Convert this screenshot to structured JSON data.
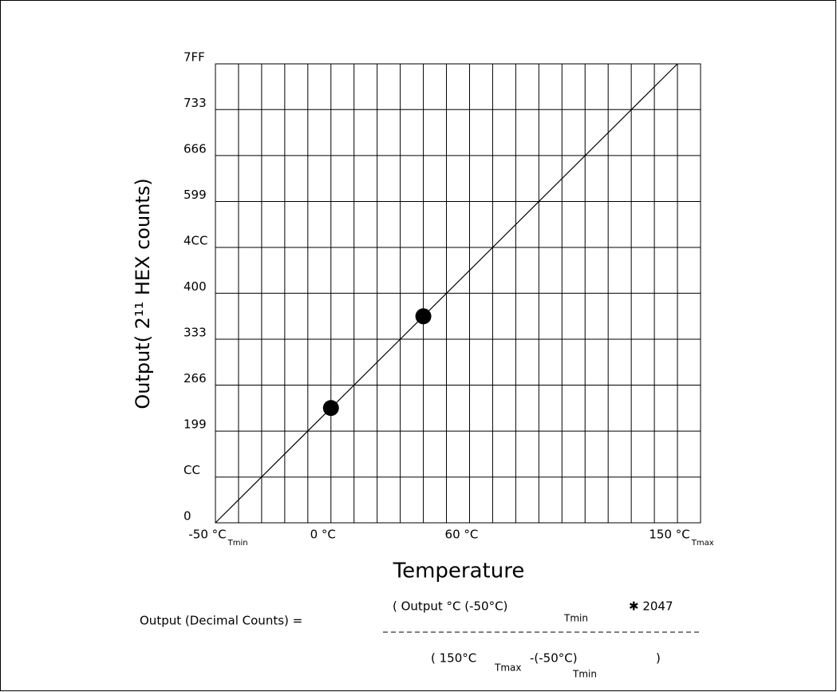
{
  "chart_data": {
    "type": "line",
    "xlabel": "Temperature",
    "ylabel": "Output( 2¹¹ HEX counts)",
    "xlim": [
      -50,
      160
    ],
    "ylim": [
      0,
      2047
    ],
    "xticks": [
      {
        "value": -50,
        "label": "-50 °C",
        "sub": "Tmin"
      },
      {
        "value": 0,
        "label": "0 °C"
      },
      {
        "value": 60,
        "label": "60 °C"
      },
      {
        "value": 150,
        "label": "150 °C",
        "sub": "Tmax"
      }
    ],
    "xgrid": [
      -50,
      -40,
      -30,
      -20,
      -10,
      0,
      10,
      20,
      30,
      40,
      50,
      60,
      70,
      80,
      90,
      100,
      110,
      120,
      130,
      140,
      150,
      160
    ],
    "yticks": [
      0,
      {
        "value": 204,
        "label": "CC"
      },
      {
        "value": 409,
        "label": "199"
      },
      {
        "value": 614,
        "label": "266"
      },
      {
        "value": 819,
        "label": "333"
      },
      {
        "value": 1024,
        "label": "400"
      },
      {
        "value": 1228,
        "label": "4CC"
      },
      {
        "value": 1433,
        "label": "599"
      },
      {
        "value": 1638,
        "label": "666"
      },
      {
        "value": 1843,
        "label": "733"
      },
      {
        "value": 2047,
        "label": "7FF"
      }
    ],
    "grid": true,
    "series": [
      {
        "x": [
          -50,
          150
        ],
        "values": [
          0,
          2047
        ],
        "color": "#000000"
      },
      {
        "x": [
          0,
          40
        ],
        "values": [
          512,
          921
        ],
        "color": "#000000",
        "markers": true
      }
    ],
    "formula": {
      "lhs": "Output (Decimal Counts) =",
      "numerator": [
        "( Output °C  (-50°C)",
        "Tmin",
        "✱ 2047"
      ],
      "denominator": [
        "( 150°C",
        "Tmax",
        "-(-50°C)",
        "Tmin",
        ")"
      ]
    }
  }
}
